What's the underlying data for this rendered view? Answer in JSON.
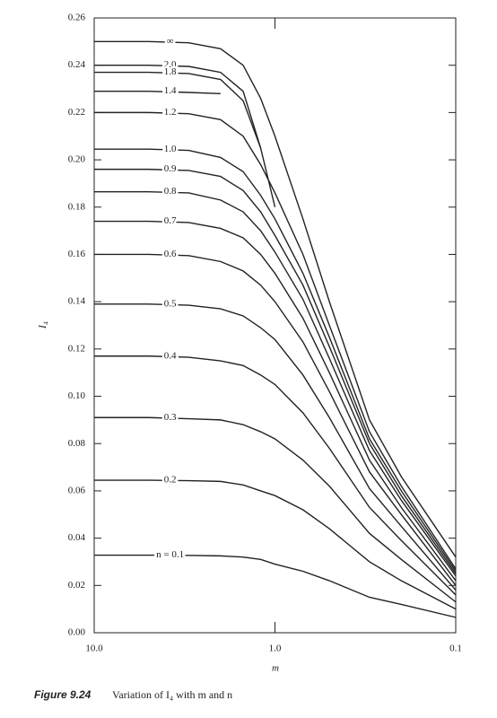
{
  "chart_data": {
    "type": "line",
    "x_label": "m",
    "y_label": "I₄",
    "caption_label": "Figure 9.24",
    "caption_text": "Variation of I₄ with m and n",
    "x": [
      10,
      5,
      3,
      2,
      1.5,
      1.2,
      1.0,
      0.7,
      0.5,
      0.3,
      0.2,
      0.1
    ],
    "xlim": [
      10,
      0.1
    ],
    "xticks": [
      {
        "value": 10,
        "label": "10.0"
      },
      {
        "value": 1,
        "label": "1.0"
      },
      0.1
    ],
    "xscale": "log",
    "ylim": [
      0,
      0.26
    ],
    "yticks": [
      {
        "value": 0,
        "label": "0.00"
      },
      {
        "value": 0.02,
        "label": "0.02"
      },
      {
        "value": 0.04,
        "label": "0.04"
      },
      {
        "value": 0.06,
        "label": "0.06"
      },
      {
        "value": 0.08,
        "label": "0.08"
      },
      {
        "value": 0.1,
        "label": "0.10"
      },
      {
        "value": 0.12,
        "label": "0.12"
      },
      {
        "value": 0.14,
        "label": "0.14"
      },
      {
        "value": 0.16,
        "label": "0.16"
      },
      {
        "value": 0.18,
        "label": "0.18"
      },
      {
        "value": 0.2,
        "label": "0.20"
      },
      {
        "value": 0.22,
        "label": "0.22"
      },
      {
        "value": 0.24,
        "label": "0.24"
      },
      {
        "value": 0.26,
        "label": "0.26"
      }
    ],
    "color": "#222222",
    "series": [
      {
        "name": "∞",
        "values": [
          0.25,
          0.25,
          0.2495,
          0.247,
          0.24,
          0.226,
          0.21,
          0.175,
          0.14,
          0.09,
          0.066,
          0.032
        ]
      },
      {
        "name": "2.0",
        "values": [
          0.24,
          0.24,
          0.2395,
          0.237,
          0.229,
          0.205,
          0.18,
          null,
          null,
          null,
          null,
          null
        ]
      },
      {
        "name": "1.8",
        "values": [
          0.237,
          0.237,
          0.2365,
          0.234,
          0.225,
          0.205,
          null,
          null,
          null,
          null,
          null,
          null
        ]
      },
      {
        "name": "1.4",
        "values": [
          0.229,
          0.229,
          0.2285,
          0.228,
          null,
          null,
          null,
          null,
          null,
          null,
          null,
          null
        ]
      },
      {
        "name": "1.2",
        "values": [
          0.22,
          0.22,
          0.2195,
          0.217,
          0.21,
          0.198,
          0.186,
          0.16,
          0.13,
          0.085,
          0.062,
          0.027
        ]
      },
      {
        "name": "1.0",
        "values": [
          0.2045,
          0.2045,
          0.204,
          0.201,
          0.195,
          0.185,
          0.175,
          0.152,
          0.125,
          0.082,
          0.06,
          0.026
        ]
      },
      {
        "name": "0.9",
        "values": [
          0.196,
          0.196,
          0.1955,
          0.193,
          0.187,
          0.178,
          0.168,
          0.147,
          0.121,
          0.08,
          0.058,
          0.025
        ]
      },
      {
        "name": "0.8",
        "values": [
          0.1865,
          0.1865,
          0.186,
          0.183,
          0.178,
          0.17,
          0.161,
          0.141,
          0.116,
          0.077,
          0.056,
          0.024
        ]
      },
      {
        "name": "0.7",
        "values": [
          0.174,
          0.174,
          0.1735,
          0.171,
          0.167,
          0.16,
          0.152,
          0.133,
          0.11,
          0.073,
          0.053,
          0.022
        ]
      },
      {
        "name": "0.6",
        "values": [
          0.16,
          0.16,
          0.1595,
          0.157,
          0.153,
          0.147,
          0.14,
          0.123,
          0.102,
          0.068,
          0.05,
          0.02
        ]
      },
      {
        "name": "0.5",
        "values": [
          0.139,
          0.139,
          0.1385,
          0.137,
          0.134,
          0.129,
          0.124,
          0.109,
          0.091,
          0.061,
          0.045,
          0.018
        ]
      },
      {
        "name": "0.4",
        "values": [
          0.117,
          0.117,
          0.1165,
          0.115,
          0.113,
          0.109,
          0.105,
          0.093,
          0.078,
          0.053,
          0.039,
          0.016
        ]
      },
      {
        "name": "0.3",
        "values": [
          0.091,
          0.091,
          0.0905,
          0.09,
          0.088,
          0.085,
          0.082,
          0.073,
          0.062,
          0.042,
          0.031,
          0.013
        ]
      },
      {
        "name": "0.2",
        "values": [
          0.0645,
          0.0645,
          0.0643,
          0.064,
          0.0625,
          0.06,
          0.058,
          0.052,
          0.044,
          0.03,
          0.022,
          0.01
        ]
      },
      {
        "name": "n = 0.1",
        "values": [
          0.0328,
          0.0328,
          0.0327,
          0.0325,
          0.032,
          0.031,
          0.029,
          0.026,
          0.022,
          0.015,
          0.012,
          0.0065
        ]
      }
    ]
  }
}
